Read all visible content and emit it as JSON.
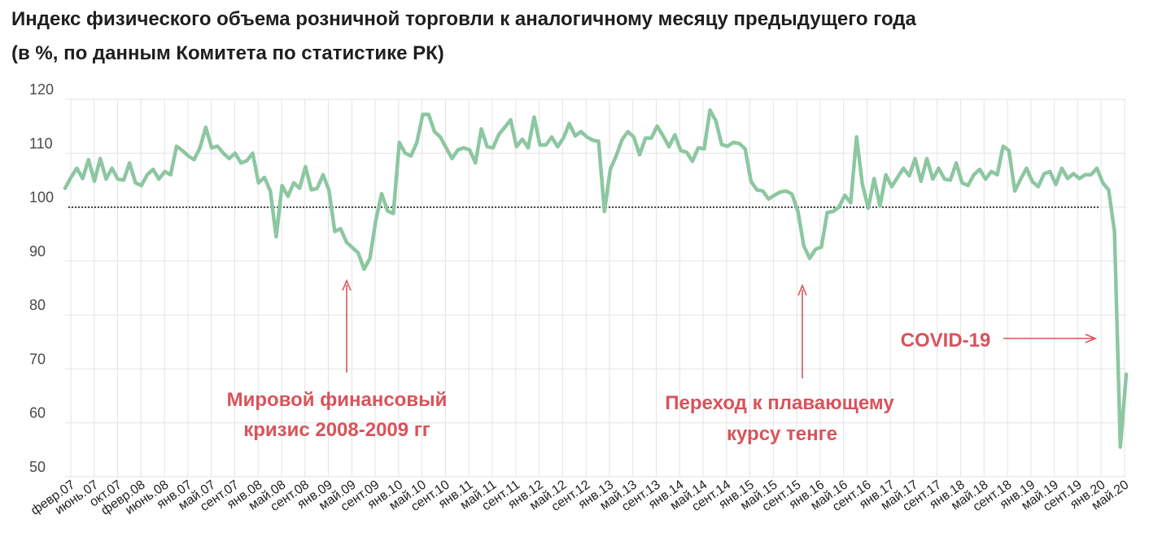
{
  "title_line1": "Индекс физического объема розничной торговли к аналогичному месяцу предыдущего года",
  "title_line2": "(в %, по данным Комитета по статистике РК)",
  "colors": {
    "line": "#8cc7a1",
    "annotation": "#d9535a",
    "grid": "#e3e3e3",
    "reference": "#000000"
  },
  "chart_data": {
    "type": "line",
    "title": "Индекс физического объема розничной торговли к аналогичному месяцу предыдущего года",
    "subtitle": "(в %, по данным Комитета по статистике РК)",
    "xlabel": "",
    "ylabel": "",
    "ylim": [
      50,
      120
    ],
    "y_ticks": [
      50,
      60,
      70,
      80,
      90,
      100,
      110,
      120
    ],
    "reference_line": 100,
    "grid": true,
    "x_ticks": [
      "февр.07",
      "июнь.07",
      "окт.07",
      "февр.08",
      "июнь.08",
      "янв.07",
      "май.07",
      "сент.07",
      "янв.08",
      "май.08",
      "сент.08",
      "янв.09",
      "май.09",
      "сент.09",
      "янв.10",
      "май.10",
      "сент.10",
      "янв.11",
      "май.11",
      "сент.11",
      "янв.12",
      "май.12",
      "сент.12",
      "янв.13",
      "май.13",
      "сент.13",
      "янв.14",
      "май.14",
      "сент.14",
      "янв.15",
      "май.15",
      "сент.15",
      "янв.16",
      "май.16",
      "сент.16",
      "янв.17",
      "май.17",
      "сент.17",
      "янв.18",
      "май.18",
      "сент.18",
      "янв.19",
      "май.19",
      "сент.19",
      "янв.20",
      "май.20"
    ],
    "series": [
      {
        "values": [
          103.5,
          105.5,
          107.2,
          105.3,
          108.8,
          104.8,
          109,
          105.2,
          107.2,
          105.2,
          105,
          108.2,
          104.5,
          104,
          106,
          107,
          105.2,
          106.6,
          106,
          111.3,
          110.5,
          109.5,
          108.8,
          111,
          114.8,
          111,
          111.3,
          110,
          109,
          110,
          108.2,
          108.6,
          110,
          104.5,
          105.5,
          103,
          94.5,
          104,
          102,
          104.5,
          103.5,
          107.5,
          103.2,
          103.5,
          106,
          103.2,
          95.5,
          96,
          93.5,
          92.5,
          91.5,
          88.5,
          90.5,
          97.5,
          102.5,
          99.3,
          98.8,
          112,
          110,
          109.5,
          112,
          117.2,
          117.2,
          114,
          113,
          111,
          109,
          110.6,
          111,
          110.6,
          108.2,
          114.5,
          111.2,
          111,
          113.5,
          114.8,
          116.2,
          111.2,
          112.6,
          111,
          116.7,
          111.5,
          111.5,
          113,
          111.2,
          112.8,
          115.5,
          113.2,
          114,
          113,
          112.4,
          112.2,
          99.2,
          107,
          109.5,
          112.5,
          114,
          113,
          109.7,
          112.8,
          112.8,
          115,
          113.2,
          111.2,
          113.4,
          110.5,
          110.2,
          108.5,
          111,
          110.8,
          118,
          116,
          111.6,
          111.3,
          112,
          111.8,
          110.8,
          104.8,
          103.2,
          103,
          101.5,
          102.2,
          102.8,
          103,
          102.4,
          99.2,
          92.8,
          90.5,
          92.2,
          92.6,
          99,
          99.2,
          100,
          102.2,
          100.8,
          113,
          104.2,
          99.8,
          105.3,
          100.2,
          106,
          103.8,
          105.5,
          107.2,
          105.8,
          109,
          104.8,
          109,
          105.2,
          107.2,
          105.2,
          105,
          108.2,
          104.5,
          104,
          106,
          107,
          105.2,
          106.6,
          106,
          111.3,
          110.5,
          103,
          105.2,
          107.2,
          104.7,
          103.8,
          106.2,
          106.6,
          104.2,
          107.2,
          105.3,
          106.2,
          105.3,
          106,
          106,
          107.2,
          104.5,
          103.2,
          95.5,
          55.5,
          69
        ]
      }
    ],
    "annotations": [
      {
        "text_lines": [
          "Мировой финансовый",
          "кризис 2008-2009 гг"
        ],
        "arrow": "up",
        "arrow_index": 52
      },
      {
        "text_lines": [
          "Переход к плавающему",
          "курсу тенге"
        ],
        "arrow": "up",
        "arrow_index": 127
      },
      {
        "text_lines": [
          "COVID-19"
        ],
        "arrow": "right",
        "arrow_index": 175
      }
    ]
  }
}
